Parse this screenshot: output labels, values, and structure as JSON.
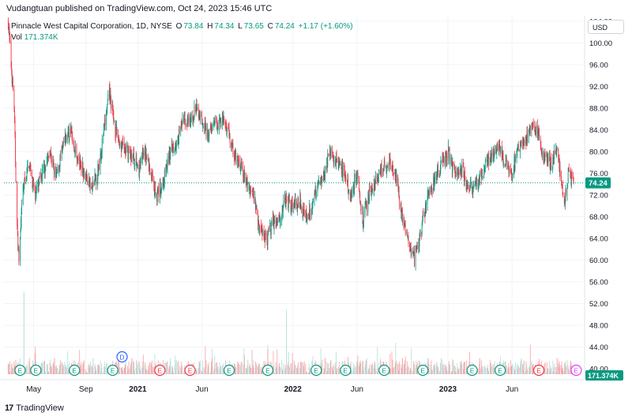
{
  "publish_line": "Vudangtuan published on TradingView.com, Oct 24, 2023 15:46 UTC",
  "legend": {
    "symbol": "Pinnacle West Capital Corporation, 1D, NYSE",
    "o_label": "O",
    "o_value": "73.84",
    "h_label": "H",
    "h_value": "74.34",
    "l_label": "L",
    "l_value": "73.65",
    "c_label": "C",
    "c_value": "74.24",
    "change": "+1.17 (+1.60%)",
    "vol_label": "Vol",
    "vol_value": "171.374K"
  },
  "currency_button": "USD",
  "footer": {
    "logo": "17",
    "brand": "TradingView"
  },
  "colors": {
    "up": "#089981",
    "down": "#f23645",
    "grid": "#f0f3fa",
    "price_line": "#089981",
    "vol_up": "#b2dfdb",
    "vol_down": "#faa1a4"
  },
  "chart_data": {
    "type": "candlestick",
    "title": "Pinnacle West Capital Corporation, 1D, NYSE",
    "x_tick_labels": [
      "May",
      "Sep",
      "2021",
      "Jun",
      "2022",
      "Jun",
      "2023",
      "Jun"
    ],
    "y_tick_labels": [
      "104.00",
      "100.00",
      "96.00",
      "92.00",
      "88.00",
      "84.00",
      "80.00",
      "76.00",
      "72.00",
      "68.00",
      "64.00",
      "60.00",
      "56.00",
      "52.00",
      "48.00",
      "44.00",
      "40.00"
    ],
    "ylim": [
      39,
      105
    ],
    "last_price": "74.24",
    "last_volume": "171.374K",
    "grid": true,
    "price_path": [
      [
        "2020-03-02",
        104
      ],
      [
        "2020-03-09",
        96
      ],
      [
        "2020-03-16",
        88
      ],
      [
        "2020-03-23",
        66
      ],
      [
        "2020-03-27",
        60
      ],
      [
        "2020-04-06",
        73
      ],
      [
        "2020-04-20",
        78
      ],
      [
        "2020-05-04",
        72
      ],
      [
        "2020-05-18",
        75
      ],
      [
        "2020-06-08",
        80
      ],
      [
        "2020-06-22",
        75
      ],
      [
        "2020-07-13",
        82
      ],
      [
        "2020-07-27",
        84
      ],
      [
        "2020-08-10",
        79
      ],
      [
        "2020-08-24",
        77
      ],
      [
        "2020-09-14",
        73
      ],
      [
        "2020-09-28",
        76
      ],
      [
        "2020-10-12",
        83
      ],
      [
        "2020-10-26",
        91
      ],
      [
        "2020-11-09",
        84
      ],
      [
        "2020-11-23",
        81
      ],
      [
        "2020-12-07",
        80
      ],
      [
        "2020-12-21",
        79
      ],
      [
        "2021-01-04",
        77
      ],
      [
        "2021-01-18",
        80
      ],
      [
        "2021-02-01",
        76
      ],
      [
        "2021-02-15",
        72
      ],
      [
        "2021-03-01",
        74
      ],
      [
        "2021-03-15",
        79
      ],
      [
        "2021-04-01",
        82
      ],
      [
        "2021-04-19",
        86
      ],
      [
        "2021-05-03",
        85
      ],
      [
        "2021-05-17",
        88
      ],
      [
        "2021-06-01",
        86
      ],
      [
        "2021-06-15",
        83
      ],
      [
        "2021-07-01",
        85
      ],
      [
        "2021-07-19",
        86
      ],
      [
        "2021-08-02",
        84
      ],
      [
        "2021-08-16",
        79
      ],
      [
        "2021-09-01",
        77
      ],
      [
        "2021-09-15",
        74
      ],
      [
        "2021-10-01",
        72
      ],
      [
        "2021-10-15",
        66
      ],
      [
        "2021-11-01",
        64
      ],
      [
        "2021-11-15",
        67
      ],
      [
        "2021-12-01",
        68
      ],
      [
        "2021-12-15",
        71
      ],
      [
        "2022-01-03",
        70
      ],
      [
        "2022-01-18",
        71
      ],
      [
        "2022-02-01",
        68
      ],
      [
        "2022-02-15",
        70
      ],
      [
        "2022-03-01",
        74
      ],
      [
        "2022-03-15",
        76
      ],
      [
        "2022-04-01",
        80
      ],
      [
        "2022-04-15",
        78
      ],
      [
        "2022-05-02",
        76
      ],
      [
        "2022-05-16",
        72
      ],
      [
        "2022-06-01",
        76
      ],
      [
        "2022-06-15",
        67
      ],
      [
        "2022-07-01",
        73
      ],
      [
        "2022-07-15",
        74
      ],
      [
        "2022-08-01",
        77
      ],
      [
        "2022-08-15",
        78
      ],
      [
        "2022-09-01",
        75
      ],
      [
        "2022-09-15",
        68
      ],
      [
        "2022-10-01",
        64
      ],
      [
        "2022-10-14",
        60
      ],
      [
        "2022-11-01",
        66
      ],
      [
        "2022-11-15",
        72
      ],
      [
        "2022-12-01",
        75
      ],
      [
        "2022-12-15",
        77
      ],
      [
        "2023-01-03",
        80
      ],
      [
        "2023-01-17",
        76
      ],
      [
        "2023-02-01",
        77
      ],
      [
        "2023-02-15",
        74
      ],
      [
        "2023-03-01",
        73
      ],
      [
        "2023-03-15",
        75
      ],
      [
        "2023-04-03",
        78
      ],
      [
        "2023-04-17",
        80
      ],
      [
        "2023-05-01",
        81
      ],
      [
        "2023-05-15",
        78
      ],
      [
        "2023-06-01",
        76
      ],
      [
        "2023-06-15",
        80
      ],
      [
        "2023-07-03",
        82
      ],
      [
        "2023-07-17",
        85
      ],
      [
        "2023-08-01",
        83
      ],
      [
        "2023-08-15",
        79
      ],
      [
        "2023-09-01",
        78
      ],
      [
        "2023-09-15",
        80
      ],
      [
        "2023-10-02",
        71
      ],
      [
        "2023-10-12",
        76
      ],
      [
        "2023-10-24",
        74.24
      ]
    ],
    "volume_peaks": [
      [
        "2020-04-08",
        46
      ],
      [
        "2020-06-19",
        9
      ],
      [
        "2020-09-18",
        9
      ],
      [
        "2020-12-18",
        9
      ],
      [
        "2021-03-19",
        9
      ],
      [
        "2021-06-25",
        9
      ],
      [
        "2021-09-17",
        8
      ],
      [
        "2021-11-03",
        14
      ],
      [
        "2021-12-17",
        36
      ],
      [
        "2022-03-18",
        9
      ],
      [
        "2022-06-24",
        9
      ],
      [
        "2022-09-16",
        9
      ],
      [
        "2022-12-16",
        9
      ],
      [
        "2023-03-17",
        9
      ],
      [
        "2023-06-23",
        9
      ],
      [
        "2023-09-15",
        9
      ]
    ],
    "event_markers": [
      {
        "date": "2020-03-30",
        "label": "E",
        "kind": "earnings-up"
      },
      {
        "date": "2020-05-06",
        "label": "E",
        "kind": "earnings-up"
      },
      {
        "date": "2020-08-05",
        "label": "E",
        "kind": "earnings-up"
      },
      {
        "date": "2020-11-03",
        "label": "E",
        "kind": "earnings-up"
      },
      {
        "date": "2020-11-25",
        "label": "D",
        "kind": "dividend"
      },
      {
        "date": "2021-02-22",
        "label": "E",
        "kind": "earnings-down"
      },
      {
        "date": "2021-05-04",
        "label": "E",
        "kind": "earnings-down"
      },
      {
        "date": "2021-08-04",
        "label": "E",
        "kind": "earnings-up"
      },
      {
        "date": "2021-11-03",
        "label": "E",
        "kind": "earnings-up"
      },
      {
        "date": "2022-02-25",
        "label": "E",
        "kind": "earnings-up"
      },
      {
        "date": "2022-05-05",
        "label": "E",
        "kind": "earnings-up"
      },
      {
        "date": "2022-08-04",
        "label": "E",
        "kind": "earnings-up"
      },
      {
        "date": "2022-11-03",
        "label": "E",
        "kind": "earnings-up"
      },
      {
        "date": "2023-02-27",
        "label": "E",
        "kind": "earnings-up"
      },
      {
        "date": "2023-05-04",
        "label": "E",
        "kind": "earnings-up"
      },
      {
        "date": "2023-08-03",
        "label": "E",
        "kind": "earnings-down"
      },
      {
        "date": "2023-10-30",
        "label": "E",
        "kind": "earnings-next"
      }
    ]
  }
}
